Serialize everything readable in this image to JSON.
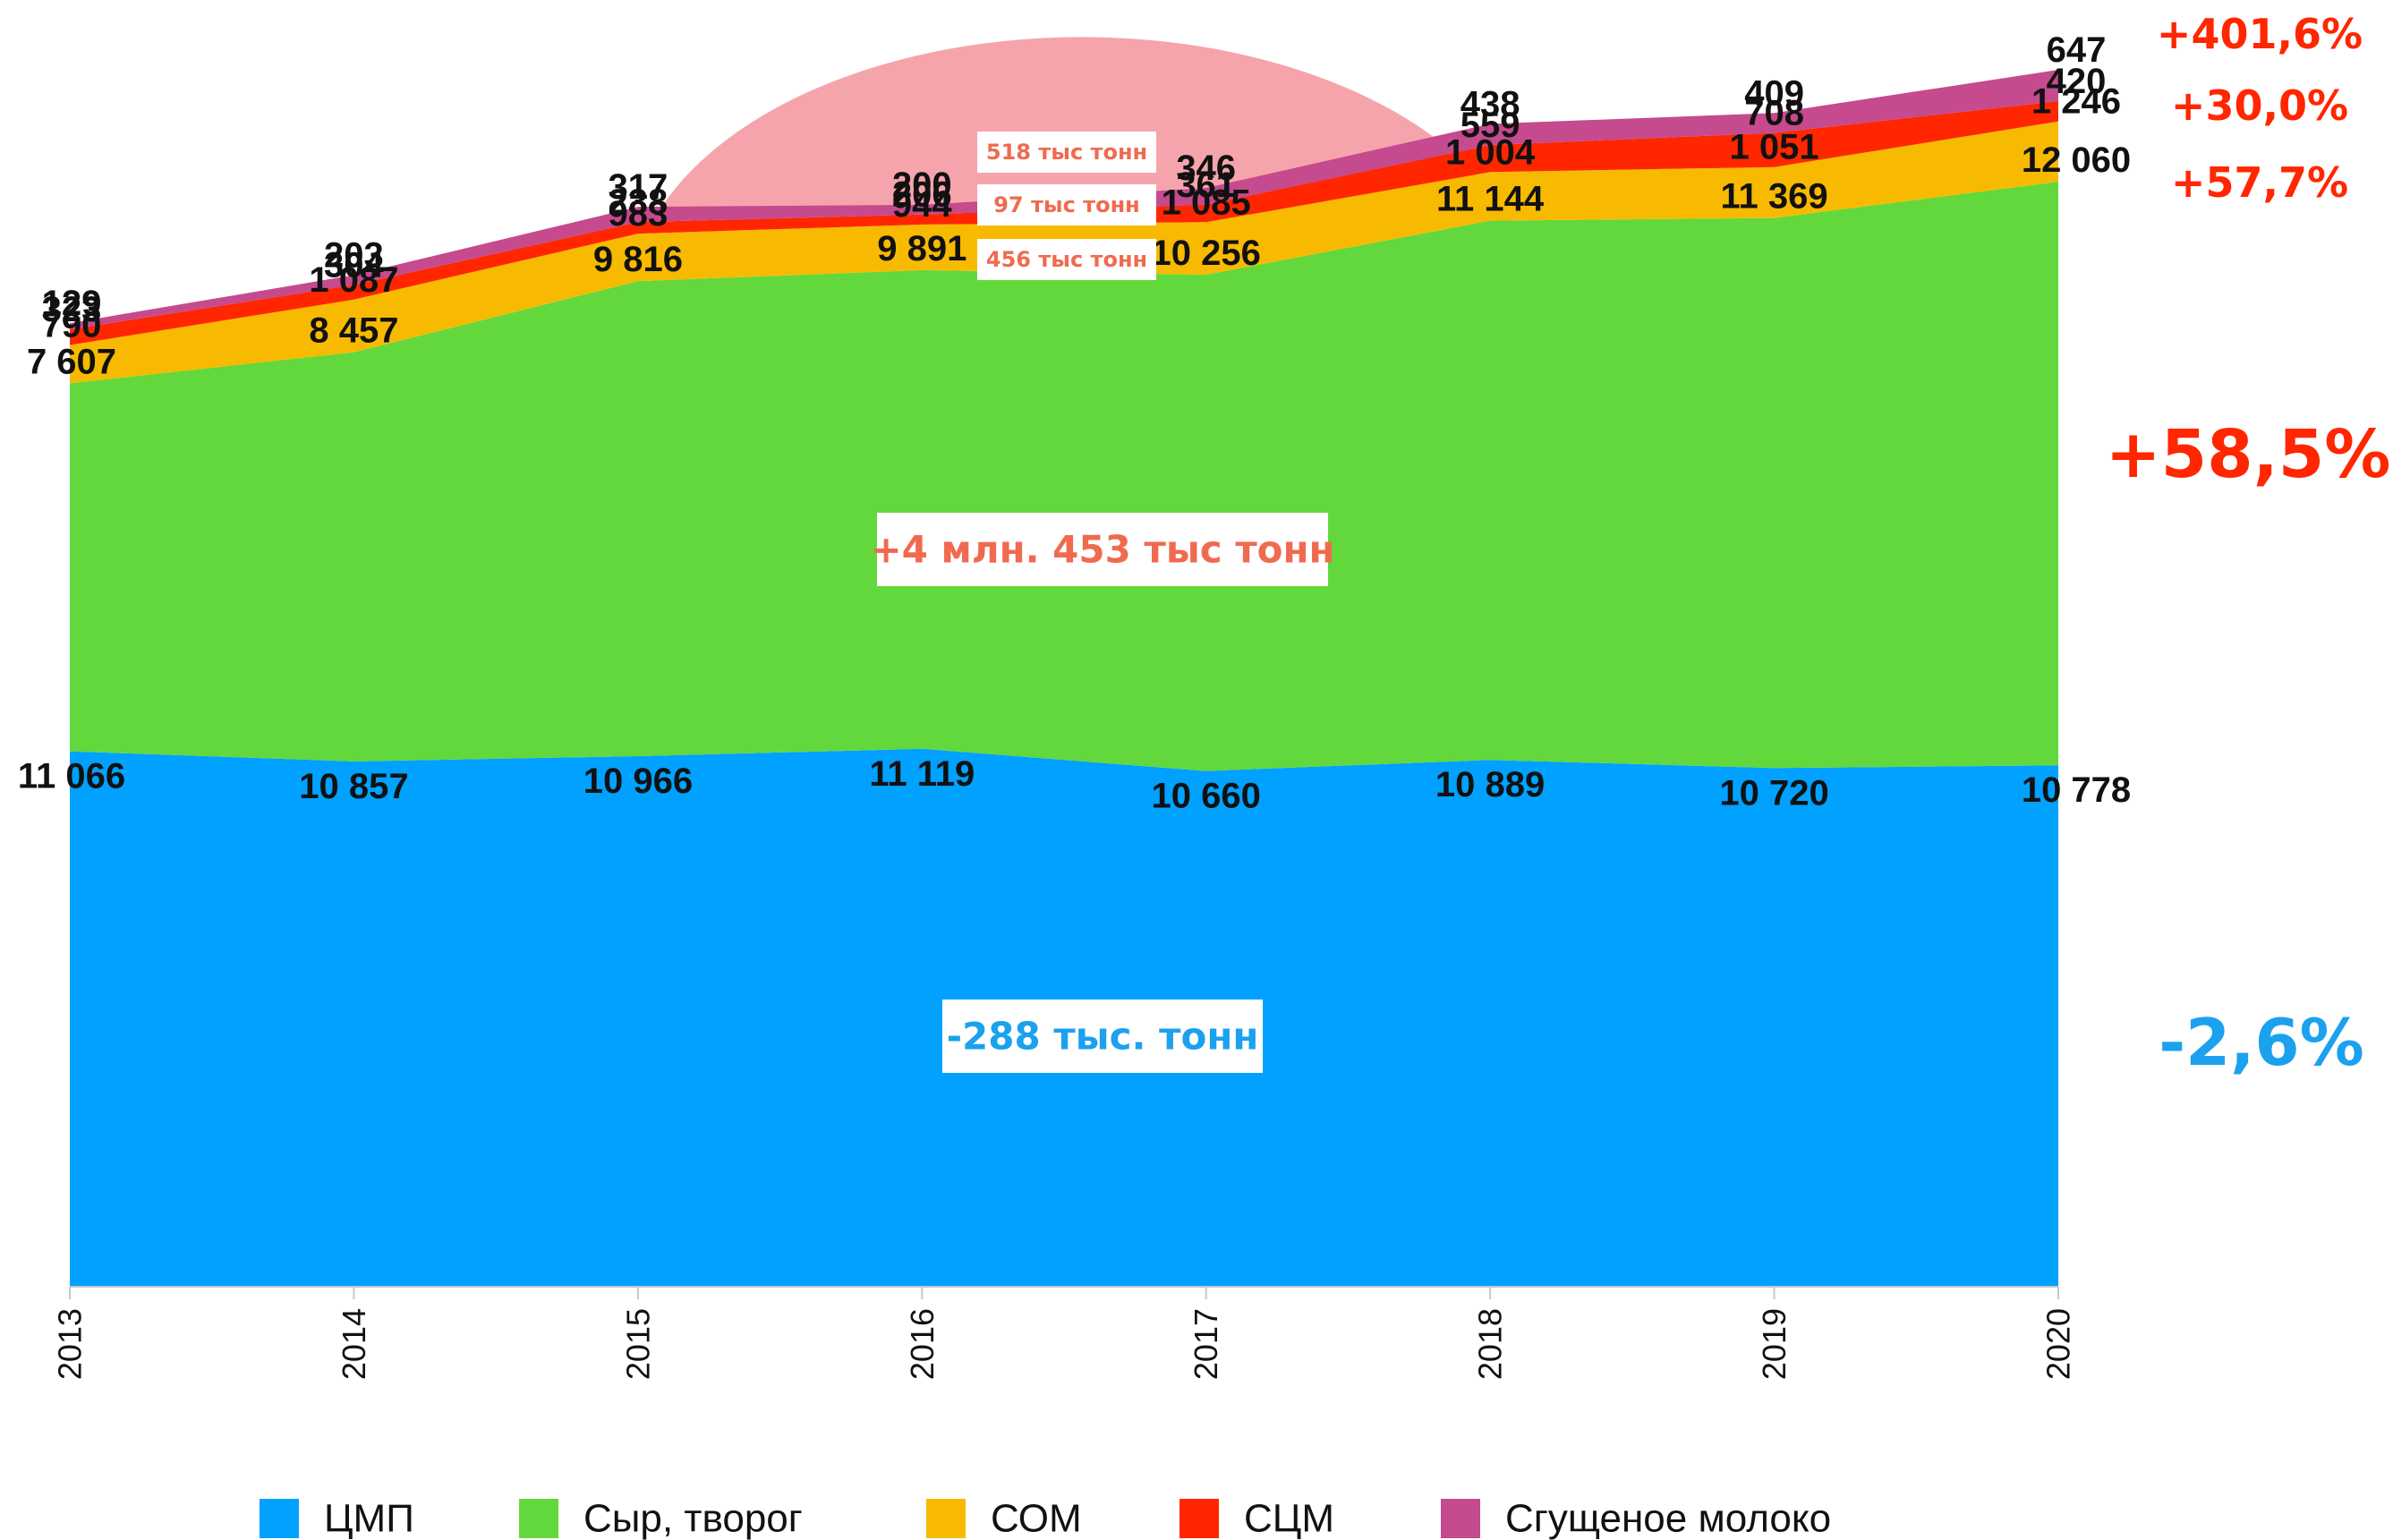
{
  "chart_data": {
    "type": "area",
    "stacked": true,
    "categories": [
      "2013",
      "2014",
      "2015",
      "2016",
      "2017",
      "2018",
      "2019",
      "2020"
    ],
    "series": [
      {
        "name": "ЦМП",
        "color": "#00A1FF",
        "values": [
          11066,
          10857,
          10966,
          11119,
          10660,
          10889,
          10720,
          10778
        ],
        "labels": [
          "11 066",
          "10 857",
          "10 966",
          "11 119",
          "10 660",
          "10 889",
          "10 720",
          "10 778"
        ]
      },
      {
        "name": "Сыр, творог",
        "color": "#62D83C",
        "values": [
          7607,
          8457,
          9816,
          9891,
          10256,
          11144,
          11369,
          12060
        ],
        "labels": [
          "7 607",
          "8 457",
          "9 816",
          "9 891",
          "10 256",
          "11 144",
          "11 369",
          "12 060"
        ]
      },
      {
        "name": "СОМ",
        "color": "#F8BA00",
        "values": [
          790,
          1087,
          983,
          944,
          1085,
          1004,
          1051,
          1246
        ],
        "labels": [
          "790",
          "1 087",
          "983",
          "944",
          "1 085",
          "1 004",
          "1 051",
          "1 246"
        ]
      },
      {
        "name": "СЦМ",
        "color": "#FF2600",
        "values": [
          323,
          304,
          238,
          206,
          361,
          559,
          708,
          420
        ],
        "labels": [
          "323",
          "304",
          "238",
          "206",
          "361",
          "559",
          "708",
          "420"
        ]
      },
      {
        "name": "Сгущеное молоко",
        "color": "#C54A8E",
        "values": [
          129,
          203,
          317,
          200,
          346,
          438,
          409,
          647
        ],
        "labels": [
          "129",
          "203",
          "317",
          "200",
          "346",
          "438",
          "409",
          "647"
        ]
      }
    ],
    "ylim": [
      0,
      25000
    ],
    "grid": false,
    "legend": "bottom",
    "annotations": {
      "pct_condensed": {
        "text": "+401,6%",
        "color": "#FF2600"
      },
      "pct_sccm": {
        "text": "+30,0%",
        "color": "#FF2600"
      },
      "pct_som": {
        "text": "+57,7%",
        "color": "#FF2600"
      },
      "pct_cheese": {
        "text": "+58,5%",
        "color": "#FF2600"
      },
      "pct_cmp": {
        "text": "-2,6%",
        "color": "#1BA1EE"
      },
      "box_cheese": {
        "text": "+4 млн. 453 тыс тонн",
        "color": "#F06A50"
      },
      "box_cmp": {
        "text": "-288  тыс. тонн",
        "color": "#1BA1EE"
      },
      "box_condensed": {
        "text": "518 тыс тонн",
        "color": "#F06A50"
      },
      "box_sccm": {
        "text": "97 тыс тонн",
        "color": "#F06A50"
      },
      "box_som": {
        "text": "456 тыс тонн",
        "color": "#F06A50"
      }
    }
  }
}
